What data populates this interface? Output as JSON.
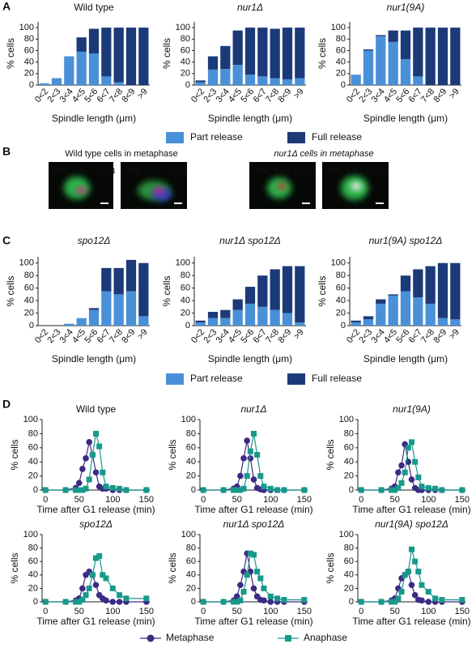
{
  "panel_labels": [
    "A",
    "B",
    "C",
    "D"
  ],
  "panel_b": {
    "captions": [
      "Wild type cells in metaphase",
      "nur1Δ cells in metaphase"
    ],
    "channels": [
      "DNA",
      "Tub1",
      "Cdc14"
    ]
  },
  "chart_data": [
    {
      "type": "bar",
      "stacked": true,
      "title": "Wild type",
      "title_style": "normal",
      "ylabel": "% cells",
      "xlabel": "Spindle length (μm)",
      "categories": [
        "0<2",
        "2<3",
        "3<4",
        "4<5",
        "5<6",
        "6<7",
        "7<8",
        "8<9",
        ">9"
      ],
      "ylim": [
        0,
        110
      ],
      "yticks": [
        0,
        20,
        40,
        60,
        80,
        100
      ],
      "series": [
        {
          "name": "Part release",
          "color": "#4a90d9",
          "values": [
            3,
            12,
            50,
            58,
            55,
            15,
            5,
            0,
            0
          ]
        },
        {
          "name": "Full release",
          "color": "#1c3a78",
          "values": [
            0,
            0,
            0,
            25,
            43,
            85,
            95,
            100,
            100
          ]
        }
      ]
    },
    {
      "type": "bar",
      "stacked": true,
      "title": "nur1Δ",
      "title_style": "italic",
      "ylabel": "% cells",
      "xlabel": "Spindle length (μm)",
      "categories": [
        "0<2",
        "2<3",
        "3<4",
        "4<5",
        "5<6",
        "6<7",
        "7<8",
        "8<9",
        ">9"
      ],
      "ylim": [
        0,
        110
      ],
      "yticks": [
        0,
        20,
        40,
        60,
        80,
        100
      ],
      "series": [
        {
          "color": "#4a90d9",
          "values": [
            5,
            27,
            28,
            35,
            18,
            15,
            12,
            10,
            12
          ]
        },
        {
          "color": "#1c3a78",
          "values": [
            3,
            23,
            40,
            60,
            82,
            85,
            86,
            90,
            88
          ]
        }
      ]
    },
    {
      "type": "bar",
      "stacked": true,
      "title": "nur1(9A)",
      "title_style": "italic",
      "ylabel": "% cells",
      "xlabel": "Spindle length (μm)",
      "categories": [
        "0<2",
        "2<3",
        "3<4",
        "4<5",
        "5<6",
        "6<7",
        "7<8",
        "8<9",
        ">9"
      ],
      "ylim": [
        0,
        110
      ],
      "yticks": [
        0,
        20,
        40,
        60,
        80,
        100
      ],
      "series": [
        {
          "color": "#4a90d9",
          "values": [
            18,
            60,
            85,
            75,
            45,
            15,
            0,
            0,
            0
          ]
        },
        {
          "color": "#1c3a78",
          "values": [
            0,
            2,
            2,
            20,
            50,
            85,
            100,
            100,
            100
          ]
        }
      ]
    },
    {
      "type": "bar",
      "stacked": true,
      "title": "spo12Δ",
      "title_style": "italic",
      "ylabel": "% cells",
      "xlabel": "Spindle length (μm)",
      "categories": [
        "0<2",
        "2<3",
        "3<4",
        "4<5",
        "5<6",
        "6<7",
        "7<8",
        "8<9",
        ">9"
      ],
      "ylim": [
        0,
        110
      ],
      "yticks": [
        0,
        20,
        40,
        60,
        80,
        100
      ],
      "series": [
        {
          "name": "Part release",
          "color": "#4a90d9",
          "values": [
            0,
            0,
            3,
            12,
            25,
            55,
            50,
            55,
            15
          ]
        },
        {
          "name": "Full release",
          "color": "#1c3a78",
          "values": [
            0,
            0,
            0,
            0,
            3,
            37,
            42,
            50,
            85
          ]
        }
      ]
    },
    {
      "type": "bar",
      "stacked": true,
      "title": "nur1Δ spo12Δ",
      "title_style": "italic",
      "ylabel": "% cells",
      "xlabel": "Spindle length (μm)",
      "categories": [
        "0<2",
        "2<3",
        "3<4",
        "4<5",
        "5<6",
        "6<7",
        "7<8",
        "8<9",
        ">9"
      ],
      "ylim": [
        0,
        110
      ],
      "yticks": [
        0,
        20,
        40,
        60,
        80,
        100
      ],
      "series": [
        {
          "color": "#4a90d9",
          "values": [
            5,
            12,
            12,
            25,
            35,
            30,
            25,
            20,
            5
          ]
        },
        {
          "color": "#1c3a78",
          "values": [
            3,
            10,
            13,
            17,
            27,
            50,
            65,
            75,
            90
          ]
        }
      ]
    },
    {
      "type": "bar",
      "stacked": true,
      "title": "nur1(9A) spo12Δ",
      "title_style": "italic",
      "ylabel": "% cells",
      "xlabel": "Spindle length (μm)",
      "categories": [
        "0<2",
        "2<3",
        "3<4",
        "4<5",
        "5<6",
        "6<7",
        "7<8",
        "8<9",
        ">9"
      ],
      "ylim": [
        0,
        110
      ],
      "yticks": [
        0,
        20,
        40,
        60,
        80,
        100
      ],
      "series": [
        {
          "color": "#4a90d9",
          "values": [
            5,
            10,
            35,
            48,
            55,
            45,
            35,
            12,
            10
          ]
        },
        {
          "color": "#1c3a78",
          "values": [
            3,
            5,
            7,
            2,
            25,
            45,
            60,
            88,
            90
          ]
        }
      ]
    },
    {
      "type": "line",
      "title": "Wild type",
      "title_style": "normal",
      "ylabel": "% cells",
      "xlabel": "Time after G1 release (min)",
      "x": [
        0,
        30,
        45,
        50,
        55,
        60,
        65,
        70,
        75,
        80,
        85,
        90,
        100,
        110,
        120,
        150
      ],
      "xlim": [
        -5,
        155
      ],
      "xticks": [
        0,
        50,
        100,
        150
      ],
      "ylim": [
        0,
        100
      ],
      "yticks": [
        0,
        20,
        40,
        60,
        80,
        100
      ],
      "series": [
        {
          "name": "Metaphase",
          "color": "#3d2a84",
          "marker": "circle",
          "values": [
            0,
            0,
            3,
            10,
            30,
            45,
            68,
            50,
            25,
            5,
            2,
            2,
            0,
            0,
            0,
            0
          ]
        },
        {
          "name": "Anaphase",
          "color": "#17998b",
          "marker": "square",
          "values": [
            0,
            0,
            0,
            0,
            0,
            2,
            15,
            50,
            80,
            62,
            25,
            5,
            3,
            2,
            0,
            0
          ]
        }
      ]
    },
    {
      "type": "line",
      "title": "nur1Δ",
      "title_style": "italic",
      "ylabel": "% cells",
      "xlabel": "Time after G1 release (min)",
      "x": [
        0,
        30,
        45,
        50,
        55,
        60,
        65,
        70,
        75,
        80,
        85,
        90,
        100,
        110,
        120,
        150
      ],
      "xlim": [
        -5,
        155
      ],
      "xticks": [
        0,
        50,
        100,
        150
      ],
      "ylim": [
        0,
        100
      ],
      "yticks": [
        0,
        20,
        40,
        60,
        80,
        100
      ],
      "series": [
        {
          "color": "#3d2a84",
          "marker": "circle",
          "values": [
            0,
            0,
            2,
            5,
            20,
            45,
            70,
            45,
            15,
            3,
            1,
            0,
            0,
            0,
            0,
            0
          ]
        },
        {
          "color": "#17998b",
          "marker": "square",
          "values": [
            0,
            0,
            0,
            0,
            0,
            2,
            20,
            55,
            80,
            50,
            20,
            5,
            2,
            0,
            0,
            0
          ]
        }
      ]
    },
    {
      "type": "line",
      "title": "nur1(9A)",
      "title_style": "italic",
      "ylabel": "% cells",
      "xlabel": "Time after G1 release (min)",
      "x": [
        0,
        30,
        45,
        50,
        55,
        60,
        65,
        70,
        75,
        80,
        85,
        90,
        100,
        110,
        120,
        150
      ],
      "xlim": [
        -5,
        155
      ],
      "xticks": [
        0,
        50,
        100,
        150
      ],
      "ylim": [
        0,
        100
      ],
      "yticks": [
        0,
        20,
        40,
        60,
        80,
        100
      ],
      "series": [
        {
          "color": "#3d2a84",
          "marker": "circle",
          "values": [
            0,
            0,
            2,
            5,
            25,
            35,
            65,
            40,
            15,
            3,
            0,
            0,
            0,
            0,
            0,
            0
          ]
        },
        {
          "color": "#17998b",
          "marker": "square",
          "values": [
            0,
            0,
            0,
            0,
            3,
            10,
            25,
            60,
            68,
            40,
            18,
            5,
            3,
            2,
            0,
            0
          ]
        }
      ]
    },
    {
      "type": "line",
      "title": "spo12Δ",
      "title_style": "italic",
      "ylabel": "% cells",
      "xlabel": "Time after G1 release (min)",
      "x": [
        0,
        30,
        45,
        50,
        55,
        60,
        65,
        70,
        75,
        80,
        85,
        90,
        100,
        110,
        120,
        150
      ],
      "xlim": [
        -5,
        155
      ],
      "xticks": [
        0,
        50,
        100,
        150
      ],
      "ylim": [
        0,
        100
      ],
      "yticks": [
        0,
        20,
        40,
        60,
        80,
        100
      ],
      "series": [
        {
          "color": "#3d2a84",
          "marker": "circle",
          "values": [
            0,
            0,
            2,
            5,
            20,
            40,
            45,
            40,
            25,
            10,
            5,
            2,
            0,
            0,
            0,
            0
          ]
        },
        {
          "color": "#17998b",
          "marker": "square",
          "values": [
            0,
            0,
            0,
            0,
            3,
            10,
            20,
            40,
            65,
            68,
            40,
            35,
            20,
            10,
            5,
            5
          ]
        }
      ]
    },
    {
      "type": "line",
      "title": "nur1Δ spo12Δ",
      "title_style": "italic",
      "ylabel": "% cells",
      "xlabel": "Time after G1 release (min)",
      "x": [
        0,
        30,
        45,
        50,
        55,
        60,
        65,
        70,
        75,
        80,
        85,
        90,
        100,
        110,
        120,
        150
      ],
      "xlim": [
        -5,
        155
      ],
      "xticks": [
        0,
        50,
        100,
        150
      ],
      "ylim": [
        0,
        100
      ],
      "yticks": [
        0,
        20,
        40,
        60,
        80,
        100
      ],
      "series": [
        {
          "color": "#3d2a84",
          "marker": "circle",
          "values": [
            0,
            0,
            2,
            8,
            25,
            45,
            72,
            45,
            20,
            8,
            3,
            2,
            0,
            0,
            0,
            0
          ]
        },
        {
          "color": "#17998b",
          "marker": "square",
          "values": [
            0,
            0,
            0,
            0,
            2,
            15,
            40,
            72,
            70,
            45,
            35,
            20,
            8,
            5,
            3,
            3
          ]
        }
      ]
    },
    {
      "type": "line",
      "title": "nur1(9A) spo12Δ",
      "title_style": "italic",
      "ylabel": "% cells",
      "xlabel": "Time after G1 release (min)",
      "x": [
        0,
        30,
        45,
        50,
        55,
        60,
        65,
        70,
        75,
        80,
        85,
        90,
        100,
        110,
        120,
        150
      ],
      "xlim": [
        -5,
        155
      ],
      "xticks": [
        0,
        50,
        100,
        150
      ],
      "ylim": [
        0,
        100
      ],
      "yticks": [
        0,
        20,
        40,
        60,
        80,
        100
      ],
      "series": [
        {
          "color": "#3d2a84",
          "marker": "circle",
          "values": [
            0,
            0,
            2,
            5,
            20,
            35,
            40,
            45,
            25,
            10,
            3,
            2,
            0,
            0,
            0,
            0
          ]
        },
        {
          "color": "#17998b",
          "marker": "square",
          "values": [
            0,
            0,
            0,
            0,
            5,
            15,
            40,
            45,
            78,
            60,
            45,
            25,
            15,
            5,
            3,
            3
          ]
        }
      ]
    }
  ]
}
